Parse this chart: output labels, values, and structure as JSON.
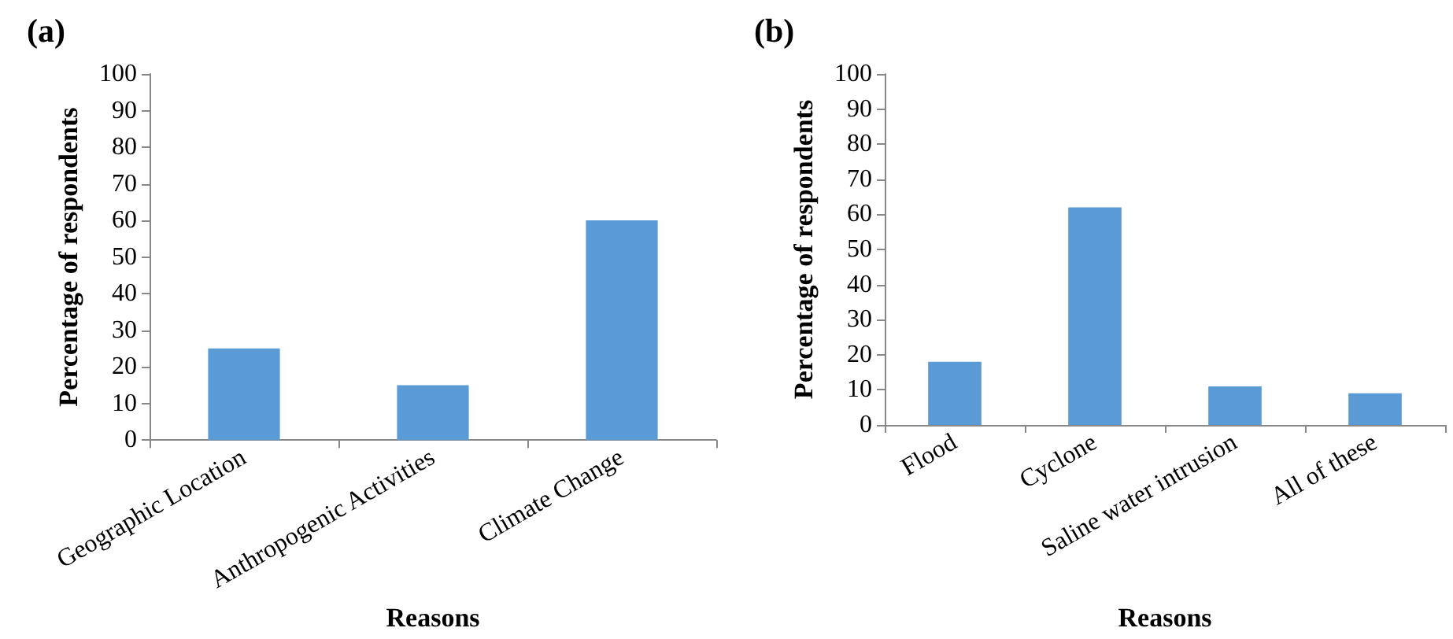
{
  "chart_data": [
    {
      "type": "bar",
      "title": "(a)",
      "xlabel": "Reasons",
      "ylabel": "Percentage of respondents",
      "categories": [
        "Geographic Location",
        "Anthropogenic Activities",
        "Climate Change"
      ],
      "values": [
        25,
        15,
        60
      ],
      "color": "#5b9bd5",
      "ylim": [
        0,
        100
      ],
      "yticks": [
        0,
        10,
        20,
        30,
        40,
        50,
        60,
        70,
        80,
        90,
        100
      ],
      "grid": false
    },
    {
      "type": "bar",
      "title": "(b)",
      "xlabel": "Reasons",
      "ylabel": "Percentage of respondents",
      "categories": [
        "Flood",
        "Cyclone",
        "Saline water intrusion",
        "All of these"
      ],
      "values": [
        18,
        62,
        11,
        9
      ],
      "color": "#5b9bd5",
      "ylim": [
        0,
        100
      ],
      "yticks": [
        0,
        10,
        20,
        30,
        40,
        50,
        60,
        70,
        80,
        90,
        100
      ],
      "grid": false
    }
  ]
}
